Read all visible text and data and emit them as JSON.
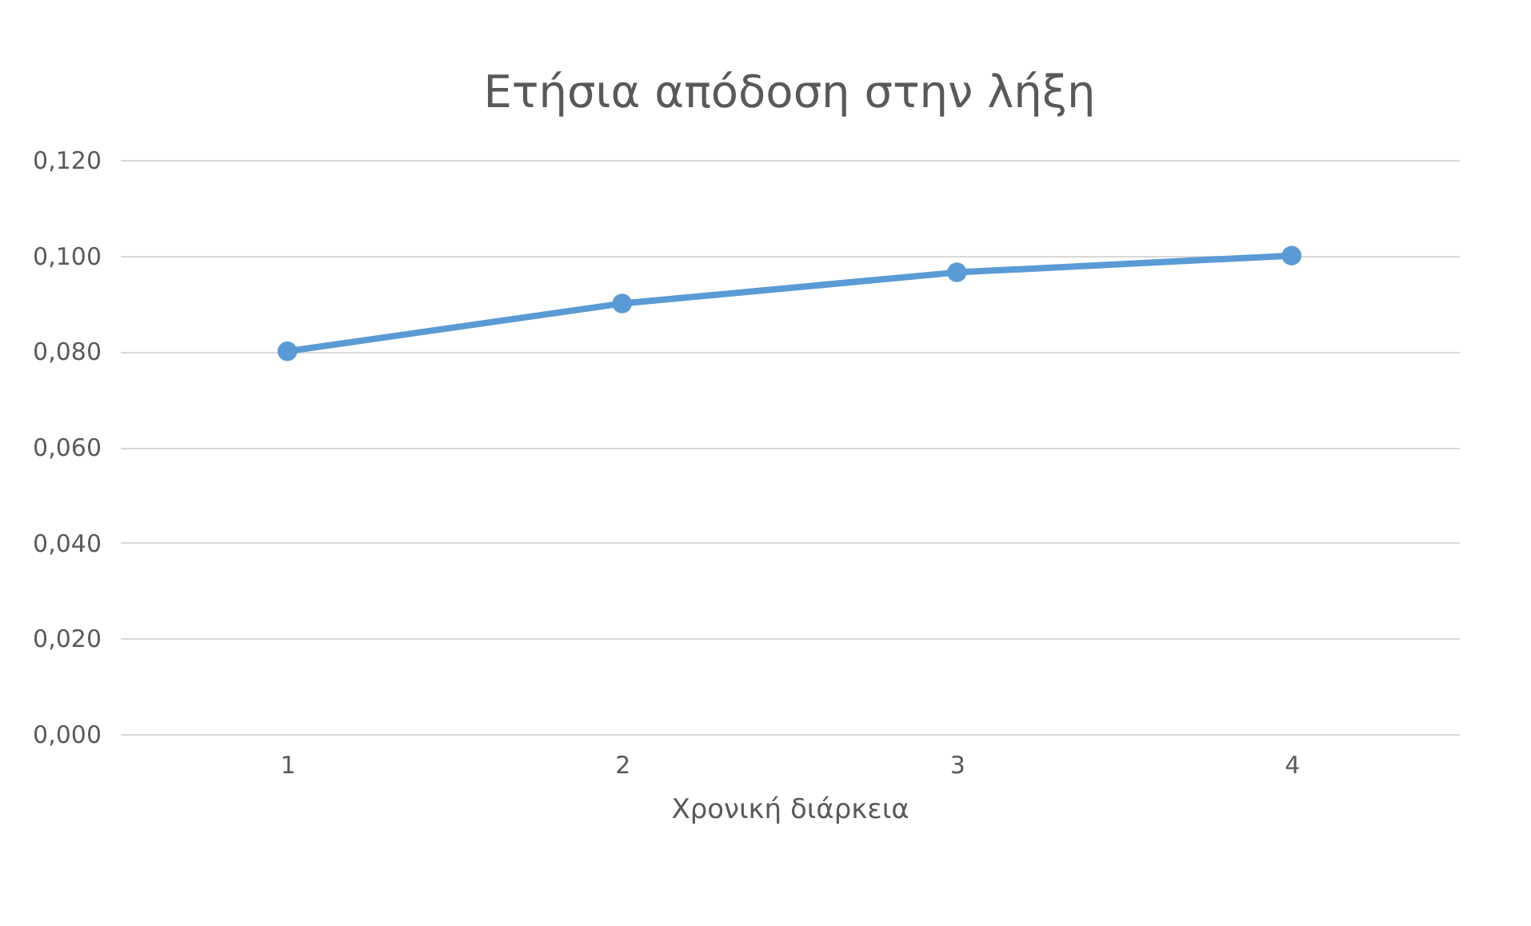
{
  "chart_data": {
    "type": "line",
    "title": "Ετήσια απόδοση στην λήξη",
    "xlabel": "Χρονική διάρκεια",
    "categories": [
      "1",
      "2",
      "3",
      "4"
    ],
    "series": [
      {
        "color": "#5b9bd5",
        "values": [
          0.08,
          0.09,
          0.0965,
          0.1
        ]
      }
    ],
    "ylim": [
      0,
      0.12
    ],
    "yticks": [
      {
        "value": 0,
        "label": "0,000"
      },
      {
        "value": 0.02,
        "label": "0,020"
      },
      {
        "value": 0.04,
        "label": "0,040"
      },
      {
        "value": 0.06,
        "label": "0,060"
      },
      {
        "value": 0.08,
        "label": "0,080"
      },
      {
        "value": 0.1,
        "label": "0,100"
      },
      {
        "value": 0.12,
        "label": "0,120"
      }
    ],
    "grid": "y",
    "marker": "circle",
    "line_style": "solid"
  }
}
